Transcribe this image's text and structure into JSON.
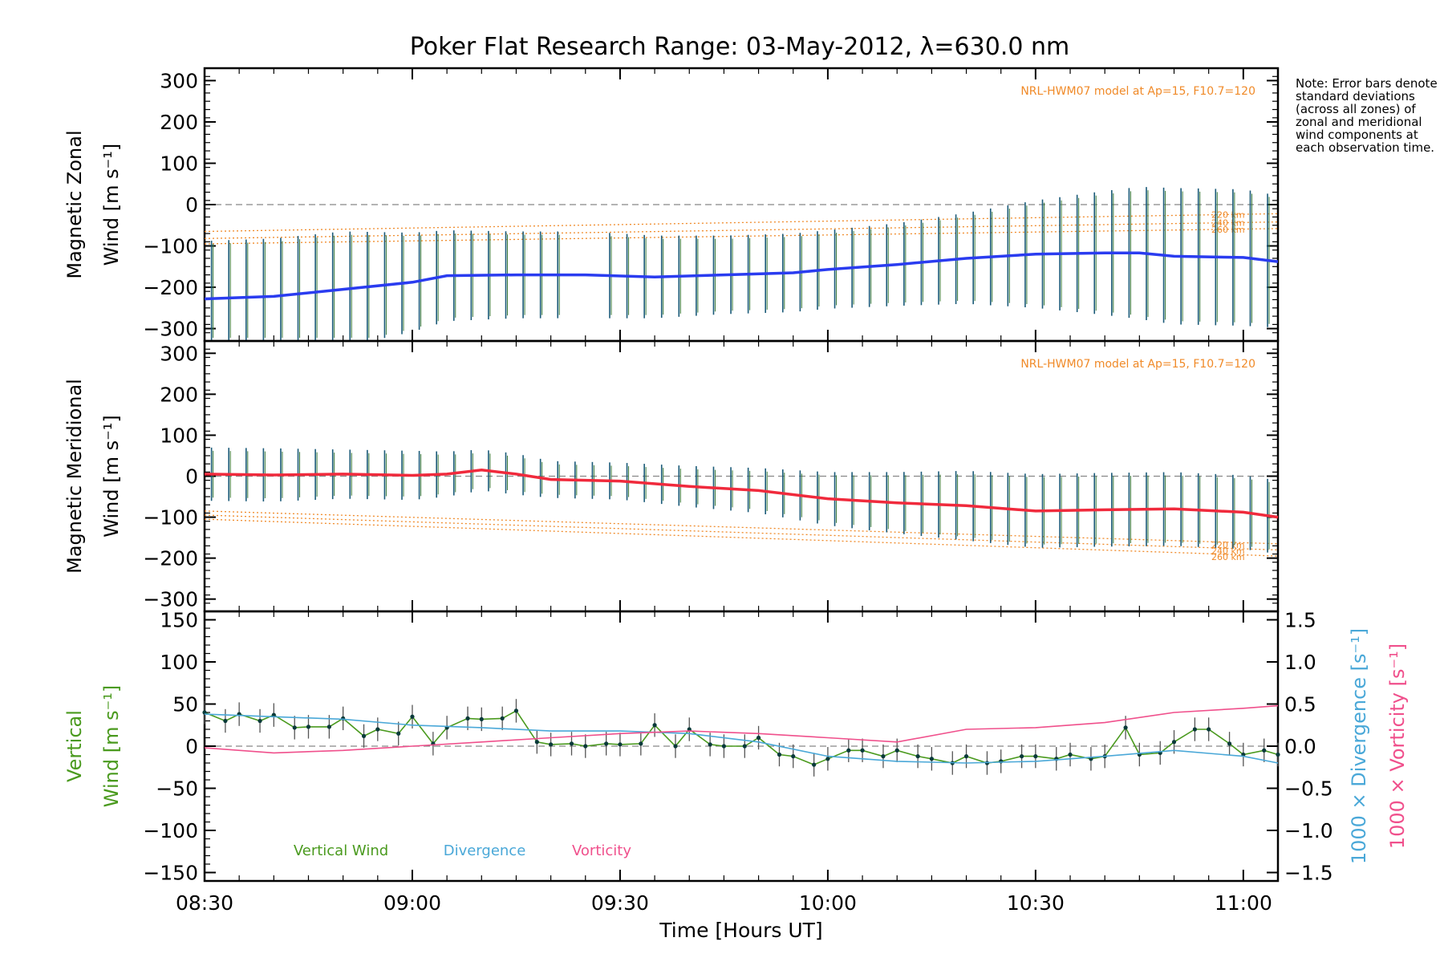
{
  "title": "Poker Flat Research Range: 03-May-2012, λ=630.0 nm",
  "note": "Note: Error bars denote standard deviations (across all zones) of zonal and meridional wind components at each observation time.",
  "colors": {
    "zonal": "#2a3cf0",
    "meridional": "#f02a3c",
    "vertical": "#4a9a1e",
    "divergence": "#4aa8d8",
    "vorticity": "#f0508c",
    "model": "#f08a28",
    "errorbar_a": "#1a5a78",
    "errorbar_b": "#3a7a3a"
  },
  "chart_data": [
    {
      "type": "line",
      "panel": "zonal",
      "ylabel_line1": "Magnetic Zonal",
      "ylabel_line2": "Wind [m s⁻¹]",
      "ylim": [
        -330,
        330
      ],
      "yticks": [
        -300,
        -200,
        -100,
        0,
        100,
        200,
        300
      ],
      "xlim": [
        "08:30",
        "11:05"
      ],
      "model_label": "NRL-HWM07 model at Ap=15, F10.7=120",
      "model_series": [
        {
          "name": "220 km",
          "x": [
            "08:30",
            "11:05"
          ],
          "values": [
            -65,
            -22
          ]
        },
        {
          "name": "240 km",
          "x": [
            "08:30",
            "11:05"
          ],
          "values": [
            -82,
            -42
          ]
        },
        {
          "name": "260 km",
          "x": [
            "08:30",
            "11:05"
          ],
          "values": [
            -95,
            -58
          ]
        }
      ],
      "series": [
        {
          "name": "Magnetic Zonal Wind",
          "x": [
            "08:30",
            "08:40",
            "08:50",
            "09:00",
            "09:05",
            "09:15",
            "09:25",
            "09:35",
            "09:45",
            "09:55",
            "10:00",
            "10:10",
            "10:20",
            "10:30",
            "10:40",
            "10:45",
            "10:50",
            "11:00",
            "11:05"
          ],
          "values": [
            -228,
            -222,
            -205,
            -188,
            -172,
            -170,
            -170,
            -175,
            -170,
            -165,
            -157,
            -145,
            -130,
            -120,
            -117,
            -117,
            -125,
            -128,
            -138
          ],
          "errorbar_halfwidth": [
            140,
            140,
            140,
            120,
            110,
            105,
            105,
            100,
            95,
            95,
            95,
            100,
            110,
            130,
            150,
            160,
            165,
            165,
            160
          ]
        }
      ]
    },
    {
      "type": "line",
      "panel": "meridional",
      "ylabel_line1": "Magnetic Meridional",
      "ylabel_line2": "Wind [m s⁻¹]",
      "ylim": [
        -330,
        330
      ],
      "yticks": [
        -300,
        -200,
        -100,
        0,
        100,
        200,
        300
      ],
      "xlim": [
        "08:30",
        "11:05"
      ],
      "model_label": "NRL-HWM07 model at Ap=15, F10.7=120",
      "model_series": [
        {
          "name": "220 km",
          "x": [
            "08:30",
            "11:05"
          ],
          "values": [
            -85,
            -165
          ]
        },
        {
          "name": "240 km",
          "x": [
            "08:30",
            "11:05"
          ],
          "values": [
            -95,
            -180
          ]
        },
        {
          "name": "260 km",
          "x": [
            "08:30",
            "11:05"
          ],
          "values": [
            -105,
            -195
          ]
        }
      ],
      "series": [
        {
          "name": "Magnetic Meridional Wind",
          "x": [
            "08:30",
            "08:40",
            "08:50",
            "09:00",
            "09:05",
            "09:10",
            "09:15",
            "09:20",
            "09:30",
            "09:40",
            "09:50",
            "10:00",
            "10:10",
            "10:20",
            "10:30",
            "10:40",
            "10:50",
            "11:00",
            "11:05"
          ],
          "values": [
            5,
            3,
            5,
            2,
            5,
            15,
            5,
            -8,
            -12,
            -25,
            -35,
            -55,
            -65,
            -72,
            -85,
            -82,
            -80,
            -88,
            -100
          ],
          "errorbar_halfwidth": [
            65,
            65,
            60,
            60,
            55,
            50,
            50,
            45,
            45,
            50,
            55,
            65,
            75,
            85,
            90,
            90,
            90,
            90,
            90
          ]
        }
      ]
    },
    {
      "type": "line",
      "panel": "vertical",
      "ylabel_line1": "Vertical",
      "ylabel_line2": "Wind [m s⁻¹]",
      "y2label": "1000 × Divergence [s⁻¹]",
      "y3label": "1000 × Vorticity [s⁻¹]",
      "ylim": [
        -160,
        160
      ],
      "yticks": [
        -150,
        -100,
        -50,
        0,
        50,
        100,
        150
      ],
      "y2lim": [
        -1.6,
        1.6
      ],
      "y2ticks": [
        -1.5,
        -1.0,
        -0.5,
        0.0,
        0.5,
        1.0,
        1.5
      ],
      "y2ticklabels": [
        "−1.5",
        "−1.0",
        "−0.5",
        "0.0",
        "0.5",
        "1.0",
        "1.5"
      ],
      "xlabel": "Time [Hours UT]",
      "xticks": [
        "08:30",
        "09:00",
        "09:30",
        "10:00",
        "10:30",
        "11:00"
      ],
      "legend": [
        "Vertical Wind",
        "Divergence",
        "Vorticity"
      ],
      "series": [
        {
          "name": "Vertical Wind",
          "x": [
            "08:30",
            "08:33",
            "08:35",
            "08:38",
            "08:40",
            "08:43",
            "08:45",
            "08:48",
            "08:50",
            "08:53",
            "08:55",
            "08:58",
            "09:00",
            "09:03",
            "09:05",
            "09:08",
            "09:10",
            "09:13",
            "09:15",
            "09:18",
            "09:20",
            "09:23",
            "09:25",
            "09:28",
            "09:30",
            "09:33",
            "09:35",
            "09:38",
            "09:40",
            "09:43",
            "09:45",
            "09:48",
            "09:50",
            "09:53",
            "09:55",
            "09:58",
            "10:00",
            "10:03",
            "10:05",
            "10:08",
            "10:10",
            "10:13",
            "10:15",
            "10:18",
            "10:20",
            "10:23",
            "10:25",
            "10:28",
            "10:30",
            "10:33",
            "10:35",
            "10:38",
            "10:40",
            "10:43",
            "10:45",
            "10:48",
            "10:50",
            "10:53",
            "10:55",
            "10:58",
            "11:00",
            "11:03",
            "11:05"
          ],
          "values": [
            40,
            30,
            38,
            30,
            37,
            22,
            23,
            23,
            33,
            12,
            20,
            15,
            35,
            3,
            22,
            33,
            32,
            33,
            42,
            5,
            2,
            3,
            0,
            3,
            2,
            3,
            25,
            0,
            20,
            2,
            0,
            0,
            10,
            -10,
            -12,
            -22,
            -15,
            -5,
            -5,
            -12,
            -5,
            -12,
            -15,
            -20,
            -12,
            -20,
            -18,
            -12,
            -12,
            -15,
            -10,
            -15,
            -12,
            22,
            -10,
            -8,
            5,
            20,
            20,
            3,
            -10,
            -5,
            -10
          ],
          "errorbar_halfwidth": [
            14,
            14,
            14,
            14,
            14,
            14,
            14,
            14,
            14,
            14,
            14,
            14,
            14,
            14,
            14,
            14,
            14,
            14,
            14,
            14,
            14,
            14,
            14,
            14,
            14,
            14,
            14,
            14,
            14,
            14,
            14,
            14,
            14,
            14,
            14,
            14,
            14,
            14,
            14,
            14,
            14,
            14,
            14,
            14,
            14,
            14,
            14,
            14,
            14,
            14,
            14,
            14,
            14,
            14,
            14,
            14,
            14,
            14,
            14,
            14,
            14,
            14,
            14
          ]
        },
        {
          "name": "Divergence",
          "axis": "y2",
          "x": [
            "08:30",
            "08:40",
            "08:50",
            "09:00",
            "09:10",
            "09:20",
            "09:30",
            "09:40",
            "09:50",
            "10:00",
            "10:10",
            "10:20",
            "10:30",
            "10:40",
            "10:50",
            "11:00",
            "11:05"
          ],
          "values": [
            0.38,
            0.35,
            0.32,
            0.25,
            0.22,
            0.18,
            0.18,
            0.15,
            0.05,
            -0.12,
            -0.18,
            -0.2,
            -0.18,
            -0.12,
            -0.05,
            -0.12,
            -0.2
          ]
        },
        {
          "name": "Vorticity",
          "axis": "y2",
          "x": [
            "08:30",
            "08:40",
            "08:50",
            "09:00",
            "09:10",
            "09:20",
            "09:30",
            "09:40",
            "09:50",
            "10:00",
            "10:10",
            "10:20",
            "10:30",
            "10:40",
            "10:50",
            "11:00",
            "11:05"
          ],
          "values": [
            -0.02,
            -0.08,
            -0.05,
            0.0,
            0.05,
            0.1,
            0.15,
            0.18,
            0.15,
            0.1,
            0.05,
            0.2,
            0.22,
            0.28,
            0.4,
            0.45,
            0.48
          ]
        }
      ]
    }
  ]
}
